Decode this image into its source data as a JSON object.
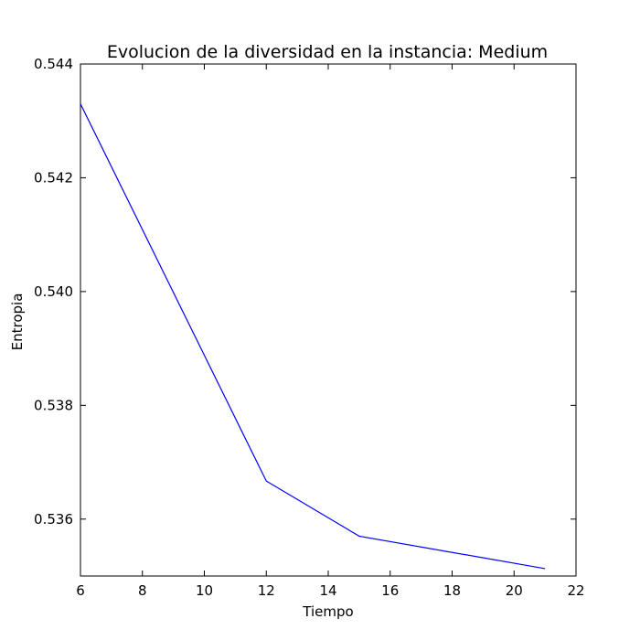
{
  "chart_data": {
    "type": "line",
    "title": "Evolucion de la diversidad en la instancia: Medium",
    "xlabel": "Tiempo",
    "ylabel": "Entropia",
    "xlim": [
      6,
      22
    ],
    "ylim": [
      0.535,
      0.544
    ],
    "xticks": [
      6,
      8,
      10,
      12,
      14,
      16,
      18,
      20,
      22
    ],
    "yticks": [
      0.536,
      0.538,
      0.54,
      0.542,
      0.544
    ],
    "ytick_labels": [
      "0.536",
      "0.538",
      "0.540",
      "0.542",
      "0.544"
    ],
    "grid": false,
    "series": [
      {
        "x": [
          6,
          12,
          15,
          21
        ],
        "y": [
          0.5433,
          0.53667,
          0.5357,
          0.53513
        ],
        "color": "#0000ff"
      }
    ]
  }
}
